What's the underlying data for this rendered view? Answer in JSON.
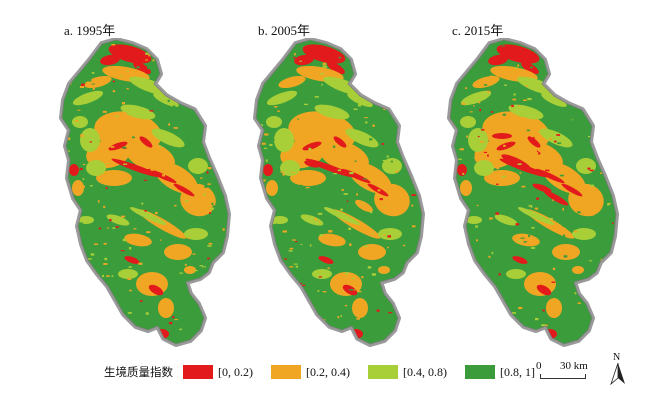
{
  "panels": [
    {
      "label": "a. 1995年"
    },
    {
      "label": "b. 2005年"
    },
    {
      "label": "c. 2015年"
    }
  ],
  "legend": {
    "title": "生境质量指数",
    "items": [
      {
        "label": "[0, 0.2)",
        "color": "#e31a1c"
      },
      {
        "label": "[0.2, 0.4)",
        "color": "#f0a623"
      },
      {
        "label": "[0.4, 0.8)",
        "color": "#a9cf38"
      },
      {
        "label": "[0.8, 1]",
        "color": "#3b9c3b"
      }
    ]
  },
  "scalebar": {
    "start": "0",
    "end_label": "30 km"
  },
  "north_arrow": {
    "label": "N"
  },
  "colors": {
    "border": "#9a9a9a"
  }
}
